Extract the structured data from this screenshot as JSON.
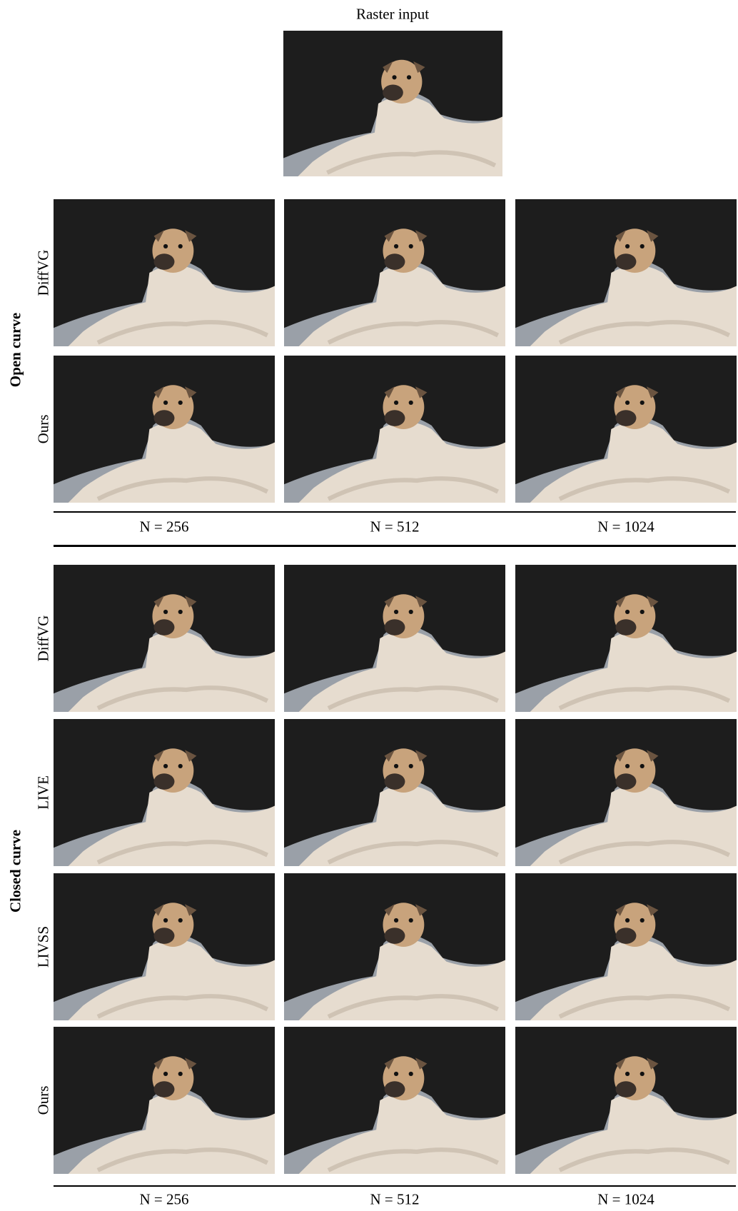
{
  "title": "Raster input",
  "sections": [
    {
      "label": "Open curve",
      "rows": [
        "DiffVG",
        "Ours"
      ],
      "columns": [
        "N = 256",
        "N = 512",
        "N = 1024"
      ]
    },
    {
      "label": "Closed curve",
      "rows": [
        "DiffVG",
        "LIVE",
        "LIVSS",
        "Ours"
      ],
      "columns": [
        "N = 256",
        "N = 512",
        "N = 1024"
      ]
    }
  ]
}
